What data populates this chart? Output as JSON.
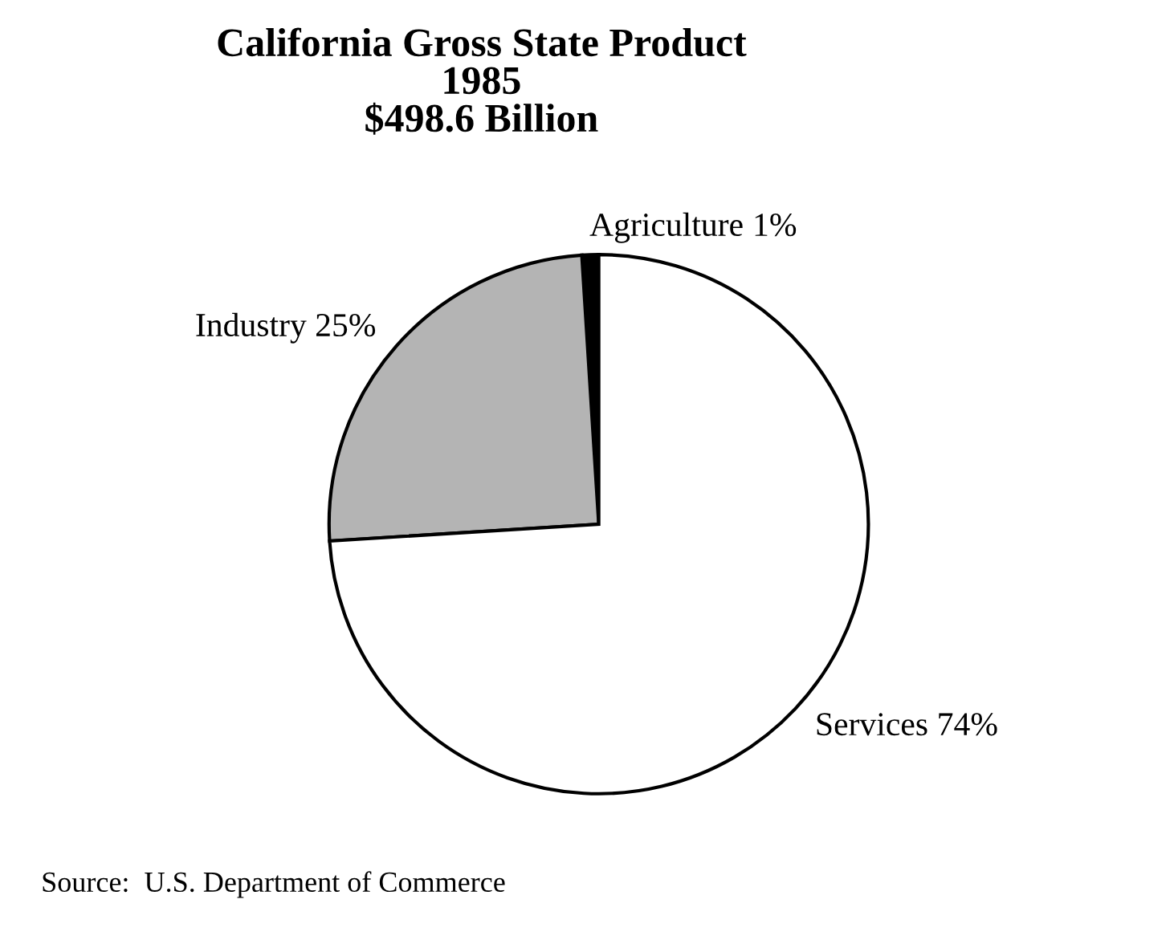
{
  "chart_data": {
    "type": "pie",
    "title": "California Gross State Product\n1985\n$498.6 Billion",
    "categories": [
      "Agriculture",
      "Industry",
      "Services"
    ],
    "values": [
      1,
      25,
      74
    ],
    "value_labels": [
      "1%",
      "25%",
      "74%"
    ],
    "colors": [
      "#000000",
      "#b4b4b4",
      "#ffffff"
    ],
    "annotations": [
      "Source:  U.S. Department of Commerce"
    ]
  }
}
